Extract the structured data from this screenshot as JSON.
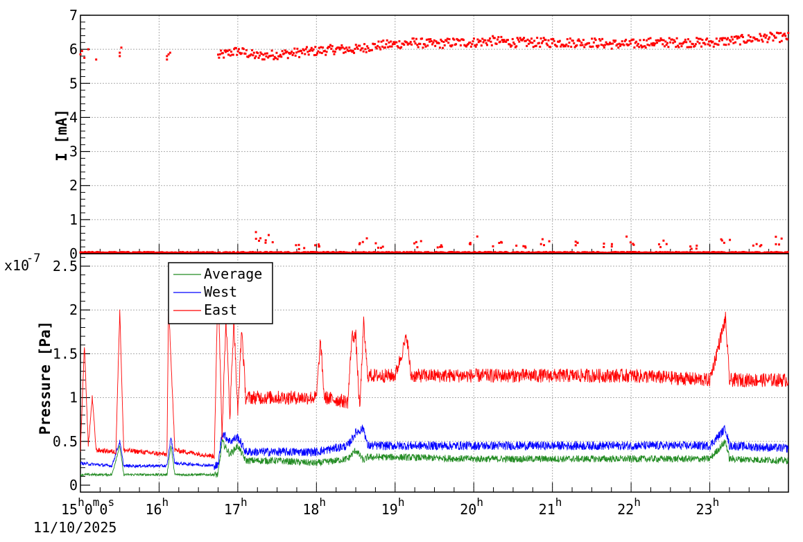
{
  "chart_data": [
    {
      "type": "scatter",
      "panel": "current",
      "ylabel": "I [mA]",
      "ylim": [
        0,
        7
      ],
      "y_ticks": [
        "0",
        "1",
        "2",
        "3",
        "4",
        "5",
        "6",
        "7"
      ],
      "xlim": [
        15,
        24
      ],
      "grid": true,
      "series": [
        {
          "color": "#ff0000",
          "high_branch": [
            [
              15.0,
              5.9
            ],
            [
              15.05,
              5.8
            ],
            [
              15.1,
              6.0
            ],
            [
              15.2,
              5.7
            ],
            [
              15.5,
              5.8
            ],
            [
              15.5,
              6.05
            ],
            [
              16.1,
              5.75
            ],
            [
              16.1,
              5.85
            ],
            [
              16.75,
              5.8
            ],
            [
              16.9,
              5.9
            ],
            [
              17.0,
              5.95
            ],
            [
              17.25,
              5.8
            ],
            [
              17.5,
              5.85
            ],
            [
              17.75,
              5.9
            ],
            [
              18.0,
              5.95
            ],
            [
              18.25,
              6.0
            ],
            [
              18.5,
              6.0
            ],
            [
              18.75,
              6.1
            ],
            [
              19.0,
              6.15
            ],
            [
              19.25,
              6.2
            ],
            [
              19.5,
              6.15
            ],
            [
              19.75,
              6.2
            ],
            [
              20.0,
              6.2
            ],
            [
              20.25,
              6.25
            ],
            [
              20.5,
              6.2
            ],
            [
              20.75,
              6.2
            ],
            [
              21.0,
              6.2
            ],
            [
              21.25,
              6.2
            ],
            [
              21.5,
              6.2
            ],
            [
              21.75,
              6.15
            ],
            [
              22.0,
              6.15
            ],
            [
              22.25,
              6.2
            ],
            [
              22.5,
              6.2
            ],
            [
              22.75,
              6.2
            ],
            [
              23.0,
              6.2
            ],
            [
              23.25,
              6.25
            ],
            [
              23.5,
              6.3
            ],
            [
              23.75,
              6.35
            ],
            [
              24.0,
              6.35
            ]
          ],
          "zero_branch_level": 0.03,
          "sparse_points": [
            [
              17.25,
              0.5
            ],
            [
              17.4,
              0.45
            ],
            [
              17.8,
              0.2
            ],
            [
              18.0,
              0.3
            ],
            [
              18.6,
              0.4
            ],
            [
              18.8,
              0.25
            ],
            [
              19.3,
              0.3
            ],
            [
              19.6,
              0.2
            ],
            [
              20.0,
              0.4
            ],
            [
              20.3,
              0.3
            ],
            [
              20.6,
              0.2
            ],
            [
              20.9,
              0.35
            ],
            [
              21.3,
              0.3
            ],
            [
              21.7,
              0.25
            ],
            [
              22.0,
              0.4
            ],
            [
              22.4,
              0.3
            ],
            [
              22.8,
              0.2
            ],
            [
              23.2,
              0.35
            ],
            [
              23.6,
              0.3
            ],
            [
              23.9,
              0.4
            ]
          ]
        }
      ]
    },
    {
      "type": "line",
      "panel": "pressure",
      "ylabel": "Pressure [Pa]",
      "y_exponent": "x10",
      "y_exponent_power": "-7",
      "ylim": [
        0,
        2.5
      ],
      "y_ticks": [
        "0",
        "0.5",
        "1",
        "1.5",
        "2",
        "2.5"
      ],
      "xlim": [
        15,
        24
      ],
      "x_ticks": [
        {
          "value": 15,
          "main": "15",
          "sup1": "h",
          "mid": "0",
          "sup2": "m",
          "mid2": "0",
          "sup3": "s"
        },
        {
          "value": 16,
          "main": "16",
          "sup1": "h"
        },
        {
          "value": 17,
          "main": "17",
          "sup1": "h"
        },
        {
          "value": 18,
          "main": "18",
          "sup1": "h"
        },
        {
          "value": 19,
          "main": "19",
          "sup1": "h"
        },
        {
          "value": 20,
          "main": "20",
          "sup1": "h"
        },
        {
          "value": 21,
          "main": "21",
          "sup1": "h"
        },
        {
          "value": 22,
          "main": "22",
          "sup1": "h"
        },
        {
          "value": 23,
          "main": "23",
          "sup1": "h"
        }
      ],
      "x_date_label": "11/10/2025",
      "grid": true,
      "legend_position": "top-left",
      "series": [
        {
          "name": "Average",
          "color": "#228b22",
          "values": [
            [
              15.0,
              0.12
            ],
            [
              15.4,
              0.12
            ],
            [
              15.5,
              0.45
            ],
            [
              15.55,
              0.12
            ],
            [
              16.1,
              0.12
            ],
            [
              16.15,
              0.45
            ],
            [
              16.2,
              0.12
            ],
            [
              16.75,
              0.12
            ],
            [
              16.8,
              0.5
            ],
            [
              16.9,
              0.35
            ],
            [
              17.0,
              0.45
            ],
            [
              17.1,
              0.28
            ],
            [
              17.5,
              0.28
            ],
            [
              18.0,
              0.25
            ],
            [
              18.4,
              0.3
            ],
            [
              18.5,
              0.4
            ],
            [
              18.6,
              0.28
            ],
            [
              18.65,
              0.32
            ],
            [
              19.0,
              0.32
            ],
            [
              20.0,
              0.3
            ],
            [
              21.0,
              0.3
            ],
            [
              22.0,
              0.3
            ],
            [
              23.0,
              0.3
            ],
            [
              23.2,
              0.5
            ],
            [
              23.25,
              0.3
            ],
            [
              24.0,
              0.28
            ]
          ]
        },
        {
          "name": "West",
          "color": "#0000ff",
          "values": [
            [
              15.0,
              0.25
            ],
            [
              15.4,
              0.22
            ],
            [
              15.5,
              0.5
            ],
            [
              15.55,
              0.22
            ],
            [
              16.1,
              0.22
            ],
            [
              16.15,
              0.55
            ],
            [
              16.2,
              0.25
            ],
            [
              16.75,
              0.22
            ],
            [
              16.8,
              0.6
            ],
            [
              16.9,
              0.5
            ],
            [
              17.0,
              0.55
            ],
            [
              17.1,
              0.38
            ],
            [
              17.5,
              0.38
            ],
            [
              18.0,
              0.38
            ],
            [
              18.4,
              0.45
            ],
            [
              18.5,
              0.6
            ],
            [
              18.6,
              0.65
            ],
            [
              18.65,
              0.45
            ],
            [
              19.0,
              0.45
            ],
            [
              20.0,
              0.45
            ],
            [
              21.0,
              0.45
            ],
            [
              22.0,
              0.45
            ],
            [
              23.0,
              0.45
            ],
            [
              23.2,
              0.65
            ],
            [
              23.25,
              0.45
            ],
            [
              24.0,
              0.42
            ]
          ]
        },
        {
          "name": "East",
          "color": "#ff0000",
          "values": [
            [
              15.0,
              0.4
            ],
            [
              15.05,
              1.6
            ],
            [
              15.1,
              0.45
            ],
            [
              15.15,
              1.0
            ],
            [
              15.2,
              0.4
            ],
            [
              15.45,
              0.38
            ],
            [
              15.5,
              2.0
            ],
            [
              15.55,
              0.4
            ],
            [
              16.1,
              0.35
            ],
            [
              16.12,
              2.1
            ],
            [
              16.2,
              0.4
            ],
            [
              16.7,
              0.33
            ],
            [
              16.75,
              2.3
            ],
            [
              16.8,
              0.6
            ],
            [
              16.85,
              1.9
            ],
            [
              16.9,
              0.8
            ],
            [
              16.95,
              1.9
            ],
            [
              17.0,
              0.8
            ],
            [
              17.05,
              1.8
            ],
            [
              17.1,
              1.0
            ],
            [
              17.5,
              1.0
            ],
            [
              18.0,
              1.0
            ],
            [
              18.05,
              1.65
            ],
            [
              18.1,
              1.0
            ],
            [
              18.4,
              0.95
            ],
            [
              18.45,
              1.7
            ],
            [
              18.5,
              1.7
            ],
            [
              18.55,
              0.85
            ],
            [
              18.6,
              1.85
            ],
            [
              18.65,
              1.25
            ],
            [
              19.0,
              1.25
            ],
            [
              19.15,
              1.7
            ],
            [
              19.2,
              1.25
            ],
            [
              20.0,
              1.25
            ],
            [
              21.0,
              1.25
            ],
            [
              22.0,
              1.25
            ],
            [
              23.0,
              1.2
            ],
            [
              23.2,
              1.9
            ],
            [
              23.25,
              1.2
            ],
            [
              24.0,
              1.2
            ]
          ]
        }
      ]
    }
  ]
}
